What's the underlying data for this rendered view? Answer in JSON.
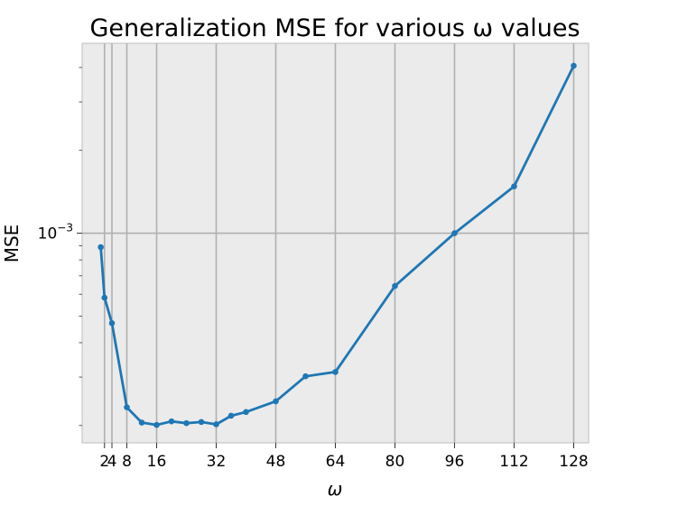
{
  "chart_data": {
    "type": "line",
    "title": "Generalization MSE for various ω values",
    "xlabel": "ω",
    "ylabel": "MSE",
    "yscale": "log",
    "xlim": [
      -4,
      132
    ],
    "ylim": [
      0.000173,
      0.0049
    ],
    "xticks": [
      2,
      4,
      8,
      16,
      32,
      48,
      64,
      80,
      96,
      112,
      128
    ],
    "xtick_labels": [
      "2",
      "4",
      "8",
      "16",
      "32",
      "48",
      "64",
      "80",
      "96",
      "112",
      "128"
    ],
    "yticks_major": [
      0.001
    ],
    "ytick_labels": [
      {
        "base": "10",
        "exp": "−3"
      }
    ],
    "grid": true,
    "color": "#1f77b4",
    "background": "#ebebeb",
    "series": [
      {
        "name": "MSE",
        "x": [
          1,
          2,
          4,
          8,
          12,
          16,
          20,
          24,
          28,
          32,
          36,
          40,
          48,
          56,
          64,
          80,
          96,
          112,
          128
        ],
        "y": [
          0.00089,
          0.000583,
          0.000471,
          0.000233,
          0.000205,
          0.000201,
          0.000207,
          0.000204,
          0.000206,
          0.000202,
          0.000217,
          0.000224,
          0.000245,
          0.000302,
          0.000313,
          0.000643,
          0.001,
          0.00148,
          0.00406
        ]
      }
    ]
  }
}
